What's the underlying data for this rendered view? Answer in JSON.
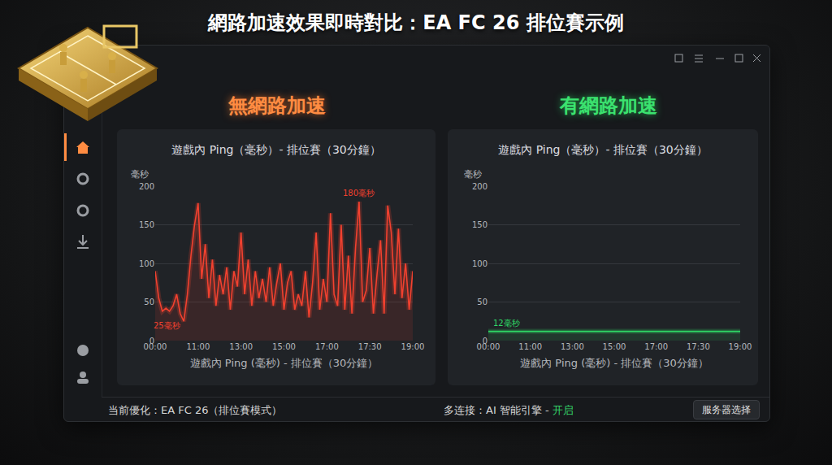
{
  "title": "網路加速效果即時對比：EA FC 26 排位賽示例",
  "chart_data": [
    {
      "type": "line",
      "subtitle": "無網路加速",
      "title": "遊戲內 Ping（毫秒）- 排位賽（30分鐘）",
      "y_label": "毫秒",
      "x_label": "遊戲內 Ping (毫秒) - 排位賽（30分鐘）",
      "categories": [
        "00:00",
        null,
        null,
        null,
        null,
        null,
        null,
        null,
        null,
        null,
        null,
        null,
        "11:00",
        null,
        null,
        null,
        null,
        null,
        null,
        null,
        null,
        null,
        null,
        null,
        "13:00",
        null,
        null,
        null,
        null,
        null,
        null,
        null,
        null,
        null,
        null,
        null,
        "15:00",
        null,
        null,
        null,
        null,
        null,
        null,
        null,
        null,
        null,
        null,
        null,
        "17:00",
        null,
        null,
        null,
        null,
        null,
        null,
        null,
        null,
        null,
        null,
        null,
        "17:30",
        null,
        null,
        null,
        null,
        null,
        null,
        null,
        null,
        null,
        null,
        null,
        "19:00"
      ],
      "values": [
        90,
        55,
        38,
        42,
        38,
        45,
        60,
        35,
        25,
        60,
        110,
        150,
        178,
        80,
        125,
        55,
        105,
        45,
        85,
        60,
        95,
        40,
        90,
        70,
        140,
        60,
        105,
        45,
        90,
        55,
        80,
        50,
        95,
        45,
        75,
        100,
        40,
        75,
        90,
        40,
        60,
        45,
        90,
        30,
        75,
        140,
        40,
        80,
        50,
        165,
        60,
        45,
        150,
        40,
        110,
        35,
        120,
        180,
        50,
        65,
        120,
        35,
        85,
        130,
        35,
        175,
        140,
        60,
        145,
        55,
        100,
        40,
        90
      ],
      "color": "#f2412f",
      "ylim": [
        0,
        200
      ],
      "yticks": [
        0,
        50,
        100,
        150,
        200
      ],
      "grid": true,
      "annotations": [
        {
          "text": "25毫秒",
          "x": 8,
          "y": 25
        },
        {
          "text": "180毫秒",
          "x": 57,
          "y": 180
        }
      ]
    },
    {
      "type": "line",
      "subtitle": "有網路加速",
      "title": "遊戲內 Ping（毫秒）- 排位賽（30分鐘）",
      "y_label": "毫秒",
      "x_label": "遊戲內 Ping (毫秒) - 排位賽（30分鐘）",
      "categories": [
        "00:00",
        null,
        null,
        null,
        null,
        null,
        null,
        null,
        null,
        null,
        null,
        null,
        "11:00",
        null,
        null,
        null,
        null,
        null,
        null,
        null,
        null,
        null,
        null,
        null,
        "13:00",
        null,
        null,
        null,
        null,
        null,
        null,
        null,
        null,
        null,
        null,
        null,
        "15:00",
        null,
        null,
        null,
        null,
        null,
        null,
        null,
        null,
        null,
        null,
        null,
        "17:00",
        null,
        null,
        null,
        null,
        null,
        null,
        null,
        null,
        null,
        null,
        null,
        "17:30",
        null,
        null,
        null,
        null,
        null,
        null,
        null,
        null,
        null,
        null,
        null,
        "19:00"
      ],
      "values": [
        12,
        12,
        12,
        12,
        12,
        12,
        12,
        12,
        12,
        12,
        12,
        12,
        12,
        12,
        12,
        12,
        12,
        12,
        12,
        12,
        12,
        12,
        12,
        12,
        12,
        12,
        12,
        12,
        12,
        12,
        12,
        12,
        12,
        12,
        12,
        12,
        12,
        12,
        12,
        12,
        12,
        12,
        12,
        12,
        12,
        12,
        12,
        12,
        12,
        12,
        12,
        12,
        12,
        12,
        12,
        12,
        12,
        12,
        12,
        12,
        12,
        12,
        12,
        12,
        12,
        12,
        12,
        12,
        12,
        12,
        12,
        12,
        12
      ],
      "color": "#2fd866",
      "ylim": [
        0,
        200
      ],
      "yticks": [
        0,
        50,
        100,
        150,
        200
      ],
      "grid": true,
      "annotations": [
        {
          "text": "12毫秒",
          "x": 1,
          "y": 12
        }
      ]
    }
  ],
  "status_bar": {
    "optimizing": "当前優化：EA FC 26（排位賽模式）",
    "multi_connection": "多连接：AI 智能引擎 - ",
    "multi_connection_state": "开启",
    "button": "服务器选择"
  }
}
